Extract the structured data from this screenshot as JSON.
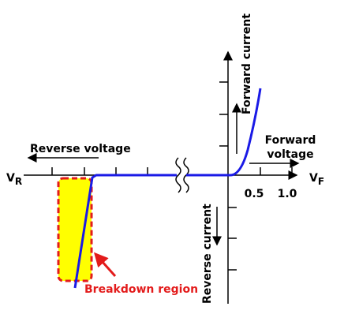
{
  "axes": {
    "vr": {
      "main": "V",
      "sub": "R"
    },
    "vf": {
      "main": "V",
      "sub": "F"
    },
    "ticks": [
      "0.5",
      "1.0"
    ]
  },
  "labels": {
    "forward_current": "Forward current",
    "forward_voltage": [
      "Forward",
      "voltage"
    ],
    "reverse_voltage": "Reverse voltage",
    "reverse_current": "Reverse current",
    "breakdown": "Breakdown region"
  }
}
